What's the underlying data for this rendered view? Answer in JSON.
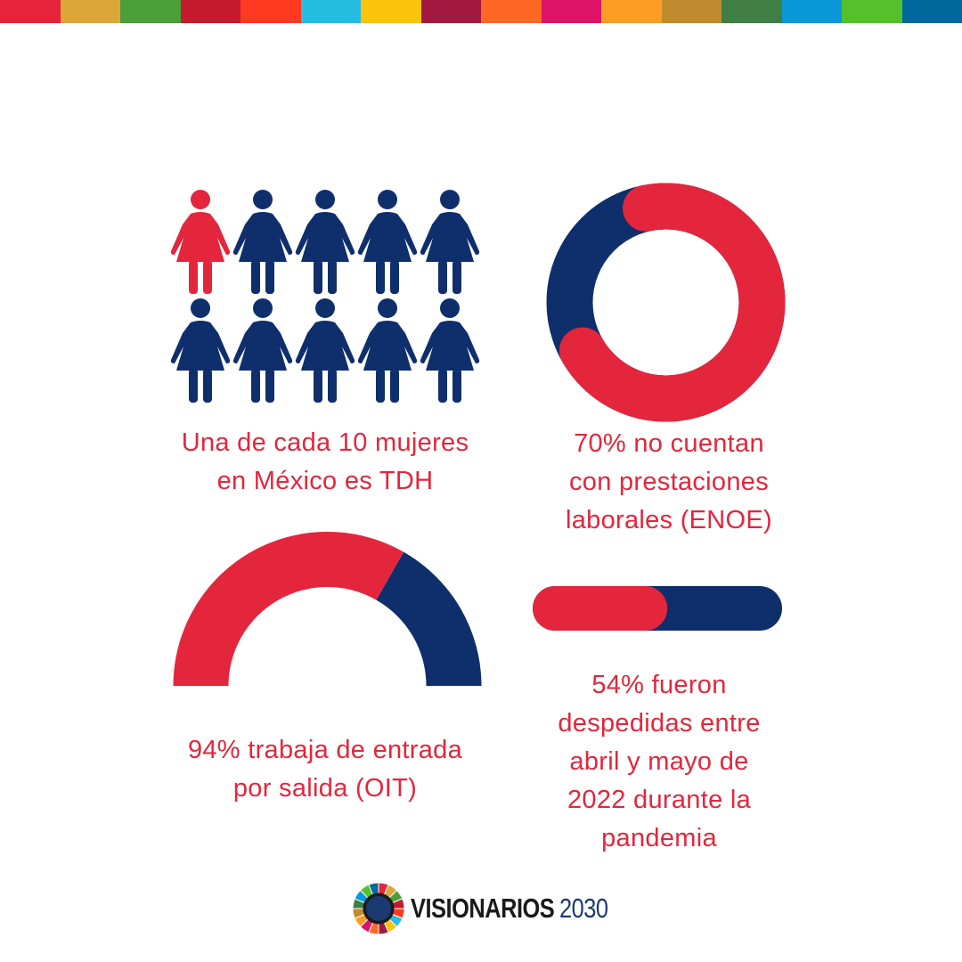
{
  "header": {
    "stripe_colors": [
      "#e5243b",
      "#dda63a",
      "#4c9f38",
      "#c5192d",
      "#ff3a21",
      "#26bde2",
      "#fcc30b",
      "#a21942",
      "#fd6925",
      "#dd1367",
      "#fd9d24",
      "#bf8b2e",
      "#3f7e44",
      "#0a97d9",
      "#56c02b",
      "#00689d"
    ]
  },
  "colors": {
    "accent_red": "#e3263c",
    "accent_navy": "#0e2f6b"
  },
  "women_icons": {
    "icon": "woman-icon",
    "total": 10,
    "highlighted": 1,
    "caption_lines": [
      "Una de cada 10 mujeres",
      "en México es TDH"
    ]
  },
  "donut": {
    "percent": 70,
    "caption_lines": [
      "70% no cuentan",
      "con prestaciones",
      "laborales (ENOE)"
    ]
  },
  "semi_gauge": {
    "percent": 94,
    "caption_lines": [
      "94% trabaja de entrada",
      "por salida (OIT)"
    ]
  },
  "progress_bar": {
    "percent": 54,
    "caption_lines": [
      "54% fueron",
      "despedidas entre",
      "abril y mayo de",
      "2022 durante la",
      "pandemia"
    ]
  },
  "footer": {
    "logo_icon": "sdg-wheel-icon",
    "logo_name": "VISIONARIOS",
    "logo_year": "2030"
  }
}
